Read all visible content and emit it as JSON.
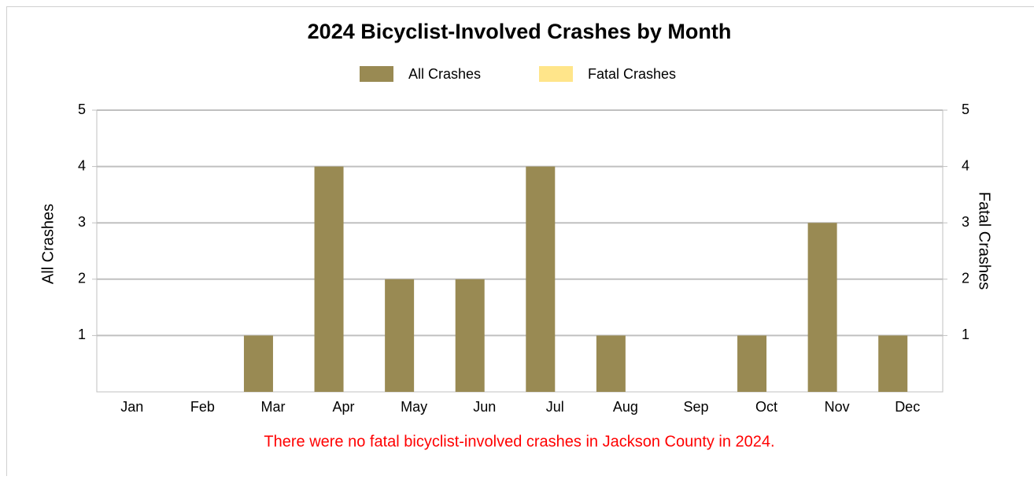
{
  "chart_data": {
    "type": "bar",
    "title": "2024 Bicyclist-Involved Crashes by Month",
    "categories": [
      "Jan",
      "Feb",
      "Mar",
      "Apr",
      "May",
      "Jun",
      "Jul",
      "Aug",
      "Sep",
      "Oct",
      "Nov",
      "Dec"
    ],
    "series": [
      {
        "name": "All Crashes",
        "color": "#998a53",
        "values": [
          0,
          0,
          1,
          4,
          2,
          2,
          4,
          1,
          0,
          1,
          3,
          1
        ]
      },
      {
        "name": "Fatal Crashes",
        "color": "#ffe58a",
        "axis": "y2",
        "values": [
          0,
          0,
          0,
          0,
          0,
          0,
          0,
          0,
          0,
          0,
          0,
          0
        ]
      }
    ],
    "ylabel": "All Crashes",
    "y2label": "Fatal Crashes",
    "ylim": [
      0,
      5
    ],
    "yticks": [
      1,
      2,
      3,
      4,
      5
    ],
    "y2lim": [
      0,
      5
    ],
    "y2ticks": [
      1,
      2,
      3,
      4,
      5
    ],
    "grid": true,
    "legend": "top",
    "annotation": "There were no fatal bicyclist-involved crashes in Jackson County in 2024."
  }
}
